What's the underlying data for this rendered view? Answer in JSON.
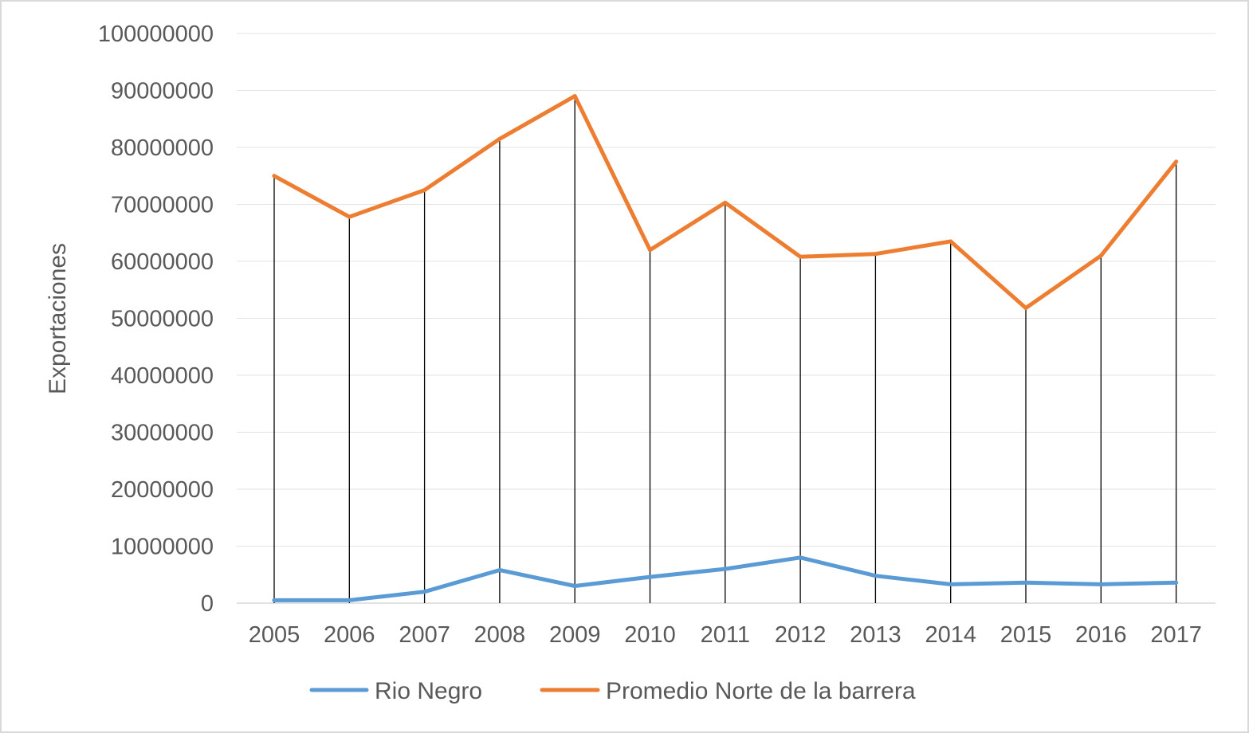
{
  "chart_data": {
    "type": "line",
    "title": "",
    "xlabel": "",
    "ylabel": "Exportaciones",
    "ylim": [
      0,
      100000000
    ],
    "yticks": [
      0,
      10000000,
      20000000,
      30000000,
      40000000,
      50000000,
      60000000,
      70000000,
      80000000,
      90000000,
      100000000
    ],
    "grid": true,
    "drop_lines": true,
    "legend_position": "bottom",
    "categories": [
      "2005",
      "2006",
      "2007",
      "2008",
      "2009",
      "2010",
      "2011",
      "2012",
      "2013",
      "2014",
      "2015",
      "2016",
      "2017"
    ],
    "series": [
      {
        "name": "Rio Negro",
        "color": "#5b9bd5",
        "values": [
          500000,
          500000,
          2000000,
          5800000,
          3000000,
          4600000,
          6000000,
          8000000,
          4800000,
          3300000,
          3600000,
          3300000,
          3600000
        ]
      },
      {
        "name": "Promedio Norte de la barrera",
        "color": "#ed7d31",
        "values": [
          75000000,
          67800000,
          72500000,
          81500000,
          89000000,
          62000000,
          70300000,
          60800000,
          61300000,
          63500000,
          51800000,
          61000000,
          77500000
        ]
      }
    ]
  }
}
